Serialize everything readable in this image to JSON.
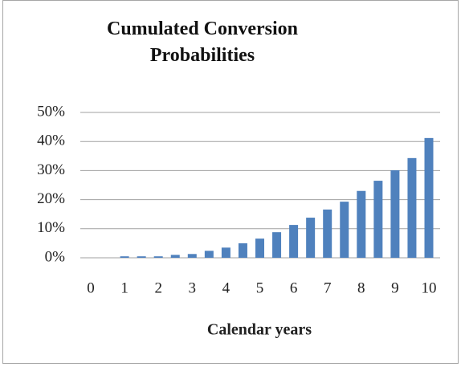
{
  "chart_data": {
    "type": "bar",
    "title": "Cumulated Conversion Probabilities",
    "x_label": "Calendar years",
    "categories": [
      "0",
      null,
      "1",
      null,
      "2",
      null,
      "3",
      null,
      "4",
      null,
      "5",
      null,
      "6",
      null,
      "7",
      null,
      "8",
      null,
      "9",
      null,
      "10"
    ],
    "values": [
      0,
      0,
      0.5,
      0.5,
      0.5,
      1,
      1.3,
      2.4,
      3.5,
      5,
      6.6,
      8.8,
      11.3,
      13.8,
      16.6,
      19.3,
      23,
      26.5,
      30.1,
      34.3,
      41.2
    ],
    "color": "#4f81bd",
    "ylim": [
      0,
      50
    ],
    "yticks": [
      {
        "value": 0,
        "label": "0%"
      },
      {
        "value": 10,
        "label": "10%"
      },
      {
        "value": 20,
        "label": "20%"
      },
      {
        "value": 30,
        "label": "30%"
      },
      {
        "value": 40,
        "label": "40%"
      },
      {
        "value": 50,
        "label": "50%"
      }
    ],
    "grid": true
  }
}
